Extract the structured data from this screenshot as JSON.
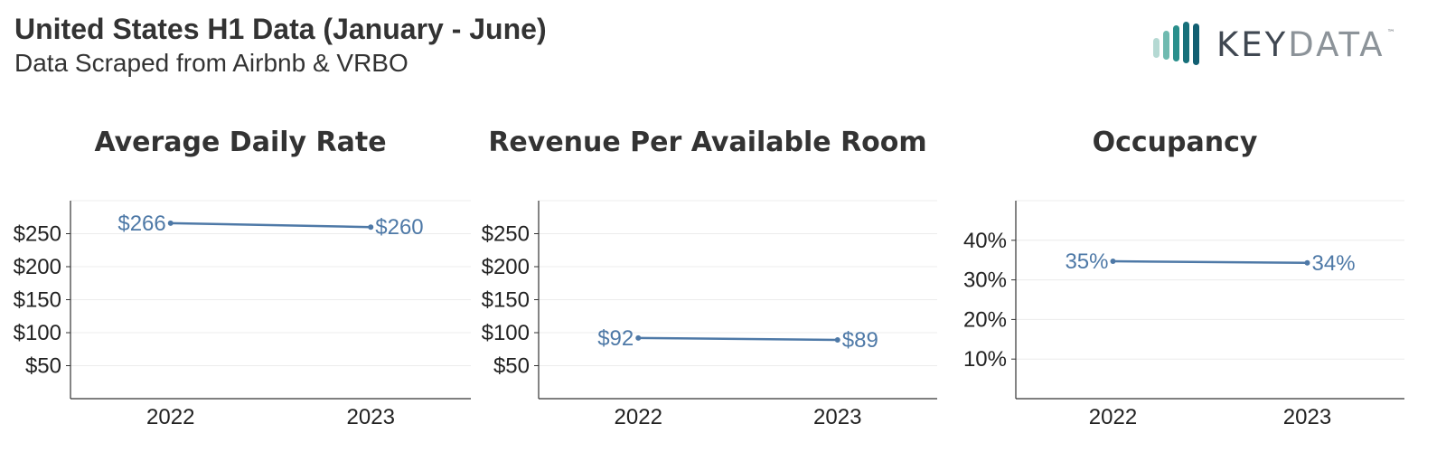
{
  "header": {
    "title": "United States H1 Data (January - June)",
    "subtitle": "Data Scraped from Airbnb & VRBO"
  },
  "logo": {
    "text_part1": "KEY",
    "text_part2": "DATA",
    "tm": "™",
    "colors": [
      "#b5d9d3",
      "#6fbab0",
      "#2a8f8c",
      "#17707a",
      "#125f72"
    ]
  },
  "colors": {
    "series": "#4e79a7",
    "axis": "#333333",
    "grid": "#ececec",
    "title": "#333333"
  },
  "chart_data": [
    {
      "type": "line",
      "title": "Average Daily Rate",
      "categories": [
        "2022",
        "2023"
      ],
      "series": [
        {
          "values": [
            266,
            260
          ],
          "labels": [
            "$266",
            "$260"
          ]
        }
      ],
      "yticks": [
        50,
        100,
        150,
        200,
        250
      ],
      "ytick_labels": [
        "$50",
        "$100",
        "$150",
        "$200",
        "$250"
      ],
      "ylim": [
        0,
        300
      ],
      "grid": true
    },
    {
      "type": "line",
      "title": "Revenue Per Available Room",
      "categories": [
        "2022",
        "2023"
      ],
      "series": [
        {
          "values": [
            92,
            89
          ],
          "labels": [
            "$92",
            "$89"
          ]
        }
      ],
      "yticks": [
        50,
        100,
        150,
        200,
        250
      ],
      "ytick_labels": [
        "$50",
        "$100",
        "$150",
        "$200",
        "$250"
      ],
      "ylim": [
        0,
        300
      ],
      "grid": true
    },
    {
      "type": "line",
      "title": "Occupancy",
      "categories": [
        "2022",
        "2023"
      ],
      "series": [
        {
          "values": [
            34.7,
            34.3
          ],
          "labels": [
            "35%",
            "34%"
          ]
        }
      ],
      "yticks": [
        10,
        20,
        30,
        40
      ],
      "ytick_labels": [
        "10%",
        "20%",
        "30%",
        "40%"
      ],
      "ylim": [
        0,
        50
      ],
      "grid": true
    }
  ]
}
